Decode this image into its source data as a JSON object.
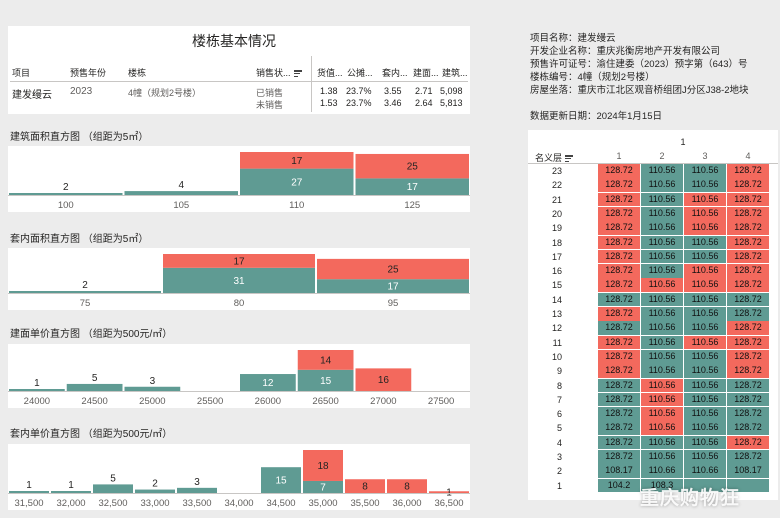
{
  "colors": {
    "sold": "#5f9b93",
    "unsold": "#f3695d",
    "base": "#ffffff"
  },
  "left_panel": {
    "title": "楼栋基本情况",
    "table": {
      "headers": [
        "项目",
        "预售年份",
        "楼栋",
        "销售状...",
        "货值...",
        "公摊...",
        "套内...",
        "建面...",
        "建筑..."
      ],
      "project": "建发缦云",
      "year": "2023",
      "building": "4幢（规划2号楼）",
      "rows": [
        {
          "status": "已销售",
          "v1": "1.38",
          "v2": "23.7%",
          "v3": "3.55",
          "v4": "2.71",
          "v5": "5,098"
        },
        {
          "status": "未销售",
          "v1": "1.53",
          "v2": "23.7%",
          "v3": "3.46",
          "v4": "2.64",
          "v5": "5,813"
        }
      ]
    }
  },
  "chart_data": [
    {
      "type": "bar",
      "title": "建筑面积直方图 （组距为5㎡）",
      "categories": [
        "100",
        "105",
        "110",
        "125"
      ],
      "series": [
        {
          "values": [
            2,
            4,
            27,
            17
          ]
        },
        {
          "values": [
            0,
            0,
            17,
            25
          ]
        }
      ],
      "stacked": true
    },
    {
      "type": "bar",
      "title": "套内面积直方图 （组距为5㎡）",
      "categories": [
        "75",
        "80",
        "95"
      ],
      "series": [
        {
          "values": [
            2,
            31,
            17
          ]
        },
        {
          "values": [
            0,
            17,
            25
          ]
        }
      ],
      "stacked": true
    },
    {
      "type": "bar",
      "title": "建面单价直方图 （组距为500元/㎡）",
      "categories": [
        "24000",
        "24500",
        "25000",
        "25500",
        "26000",
        "26500",
        "27000",
        "27500"
      ],
      "series": [
        {
          "values": [
            1,
            5,
            3,
            0,
            12,
            15,
            0,
            0
          ]
        },
        {
          "values": [
            0,
            0,
            0,
            0,
            0,
            14,
            16,
            0
          ]
        }
      ],
      "stacked": true
    },
    {
      "type": "bar",
      "title": "套内单价直方图 （组距为500元/㎡）",
      "categories": [
        "31,500",
        "32,000",
        "32,500",
        "33,000",
        "33,500",
        "34,000",
        "34,500",
        "35,000",
        "35,500",
        "36,000",
        "36,500"
      ],
      "series": [
        {
          "values": [
            1,
            1,
            5,
            2,
            3,
            0,
            15,
            7,
            0,
            0,
            0
          ]
        },
        {
          "values": [
            0,
            0,
            0,
            0,
            0,
            0,
            0,
            18,
            8,
            8,
            1
          ]
        }
      ],
      "stacked": true
    },
    {
      "type": "heatmap",
      "column_group": "1",
      "row_header": "名义层",
      "columns": [
        "1",
        "2",
        "3",
        "4"
      ],
      "rows": [
        {
          "floor": "23",
          "cells": [
            [
              "128.72",
              "u"
            ],
            [
              "110.56",
              "s"
            ],
            [
              "110.56",
              "s"
            ],
            [
              "128.72",
              "u"
            ]
          ]
        },
        {
          "floor": "22",
          "cells": [
            [
              "128.72",
              "u"
            ],
            [
              "110.56",
              "s"
            ],
            [
              "110.56",
              "s"
            ],
            [
              "128.72",
              "u"
            ]
          ]
        },
        {
          "floor": "21",
          "cells": [
            [
              "128.72",
              "u"
            ],
            [
              "110.56",
              "s"
            ],
            [
              "110.56",
              "u"
            ],
            [
              "128.72",
              "u"
            ]
          ]
        },
        {
          "floor": "20",
          "cells": [
            [
              "128.72",
              "u"
            ],
            [
              "110.56",
              "s"
            ],
            [
              "110.56",
              "u"
            ],
            [
              "128.72",
              "u"
            ]
          ]
        },
        {
          "floor": "19",
          "cells": [
            [
              "128.72",
              "u"
            ],
            [
              "110.56",
              "s"
            ],
            [
              "110.56",
              "u"
            ],
            [
              "128.72",
              "u"
            ]
          ]
        },
        {
          "floor": "18",
          "cells": [
            [
              "128.72",
              "u"
            ],
            [
              "110.56",
              "s"
            ],
            [
              "110.56",
              "s"
            ],
            [
              "128.72",
              "u"
            ]
          ]
        },
        {
          "floor": "17",
          "cells": [
            [
              "128.72",
              "u"
            ],
            [
              "110.56",
              "s"
            ],
            [
              "110.56",
              "s"
            ],
            [
              "128.72",
              "u"
            ]
          ]
        },
        {
          "floor": "16",
          "cells": [
            [
              "128.72",
              "u"
            ],
            [
              "110.56",
              "s"
            ],
            [
              "110.56",
              "u"
            ],
            [
              "128.72",
              "u"
            ]
          ]
        },
        {
          "floor": "15",
          "cells": [
            [
              "128.72",
              "u"
            ],
            [
              "110.56",
              "u"
            ],
            [
              "110.56",
              "u"
            ],
            [
              "128.72",
              "u"
            ]
          ]
        },
        {
          "floor": "14",
          "cells": [
            [
              "128.72",
              "s"
            ],
            [
              "110.56",
              "s"
            ],
            [
              "110.56",
              "s"
            ],
            [
              "128.72",
              "s"
            ]
          ]
        },
        {
          "floor": "13",
          "cells": [
            [
              "128.72",
              "u"
            ],
            [
              "110.56",
              "s"
            ],
            [
              "110.56",
              "s"
            ],
            [
              "128.72",
              "s"
            ]
          ]
        },
        {
          "floor": "12",
          "cells": [
            [
              "128.72",
              "s"
            ],
            [
              "110.56",
              "s"
            ],
            [
              "110.56",
              "s"
            ],
            [
              "128.72",
              "u"
            ]
          ]
        },
        {
          "floor": "11",
          "cells": [
            [
              "128.72",
              "u"
            ],
            [
              "110.56",
              "s"
            ],
            [
              "110.56",
              "u"
            ],
            [
              "128.72",
              "u"
            ]
          ]
        },
        {
          "floor": "10",
          "cells": [
            [
              "128.72",
              "u"
            ],
            [
              "110.56",
              "s"
            ],
            [
              "110.56",
              "s"
            ],
            [
              "128.72",
              "u"
            ]
          ]
        },
        {
          "floor": "9",
          "cells": [
            [
              "128.72",
              "u"
            ],
            [
              "110.56",
              "s"
            ],
            [
              "110.56",
              "s"
            ],
            [
              "128.72",
              "u"
            ]
          ]
        },
        {
          "floor": "8",
          "cells": [
            [
              "128.72",
              "s"
            ],
            [
              "110.56",
              "u"
            ],
            [
              "110.56",
              "s"
            ],
            [
              "128.72",
              "s"
            ]
          ]
        },
        {
          "floor": "7",
          "cells": [
            [
              "128.72",
              "s"
            ],
            [
              "110.56",
              "u"
            ],
            [
              "110.56",
              "s"
            ],
            [
              "128.72",
              "s"
            ]
          ]
        },
        {
          "floor": "6",
          "cells": [
            [
              "128.72",
              "s"
            ],
            [
              "110.56",
              "u"
            ],
            [
              "110.56",
              "s"
            ],
            [
              "128.72",
              "s"
            ]
          ]
        },
        {
          "floor": "5",
          "cells": [
            [
              "128.72",
              "s"
            ],
            [
              "110.56",
              "u"
            ],
            [
              "110.56",
              "s"
            ],
            [
              "128.72",
              "s"
            ]
          ]
        },
        {
          "floor": "4",
          "cells": [
            [
              "128.72",
              "s"
            ],
            [
              "110.56",
              "s"
            ],
            [
              "110.56",
              "s"
            ],
            [
              "128.72",
              "u"
            ]
          ]
        },
        {
          "floor": "3",
          "cells": [
            [
              "128.72",
              "s"
            ],
            [
              "110.56",
              "s"
            ],
            [
              "110.56",
              "s"
            ],
            [
              "128.72",
              "s"
            ]
          ]
        },
        {
          "floor": "2",
          "cells": [
            [
              "108.17",
              "s"
            ],
            [
              "110.66",
              "s"
            ],
            [
              "110.66",
              "s"
            ],
            [
              "108.17",
              "s"
            ]
          ]
        },
        {
          "floor": "1",
          "cells": [
            [
              "104.2",
              "s"
            ],
            [
              "108.3",
              "s"
            ],
            [
              "",
              "s"
            ],
            [
              "",
              "s"
            ]
          ]
        }
      ]
    }
  ],
  "info": {
    "project_name": "项目名称：建发缦云",
    "developer": "开发企业名称：重庆兆衡房地产开发有限公司",
    "permit": "预售许可证号：渝住建委（2023）预字第（643）号",
    "building_no": "楼栋编号：4幢（规划2号楼）",
    "location": "房屋坐落：重庆市江北区观音桥组团J分区J38-2地块",
    "update_date": "数据更新日期：2024年1月15日"
  },
  "watermark": "重庆购物狂"
}
